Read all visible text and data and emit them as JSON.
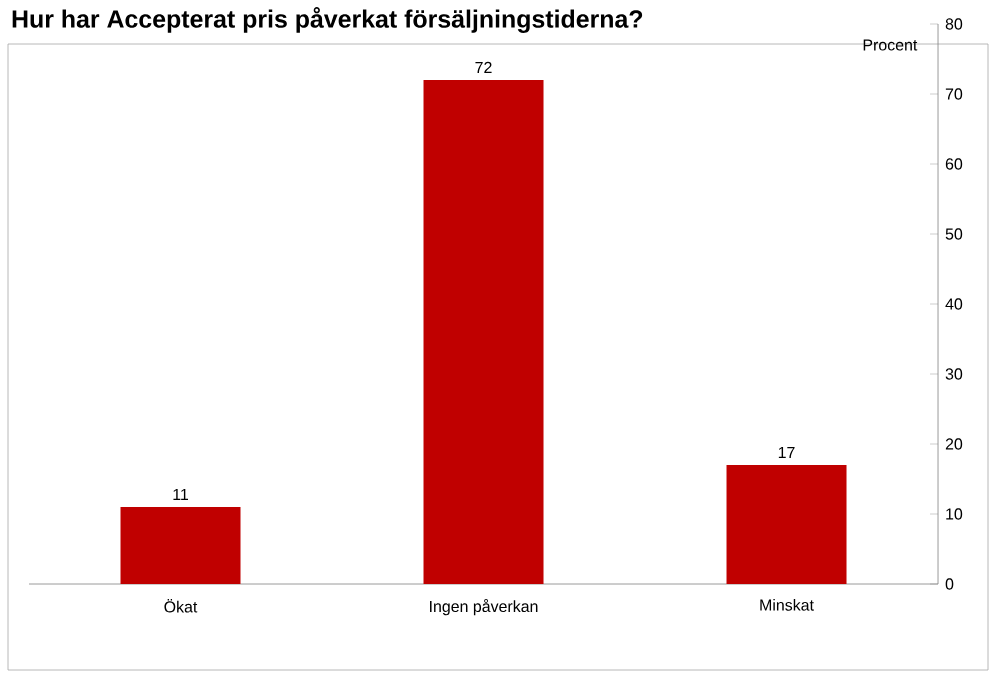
{
  "chart_data": {
    "type": "bar",
    "title": "Hur har Accepterat pris påverkat försäljningstiderna?",
    "ylabel": "Procent",
    "categories": [
      "Ökat",
      "Ingen påverkan",
      "Minskat"
    ],
    "values": [
      11,
      72,
      17
    ],
    "color": "#c00000",
    "data_labels": true,
    "ylim": [
      0,
      80
    ],
    "yticks": [
      0,
      10,
      20,
      30,
      40,
      50,
      60,
      70,
      80
    ]
  }
}
